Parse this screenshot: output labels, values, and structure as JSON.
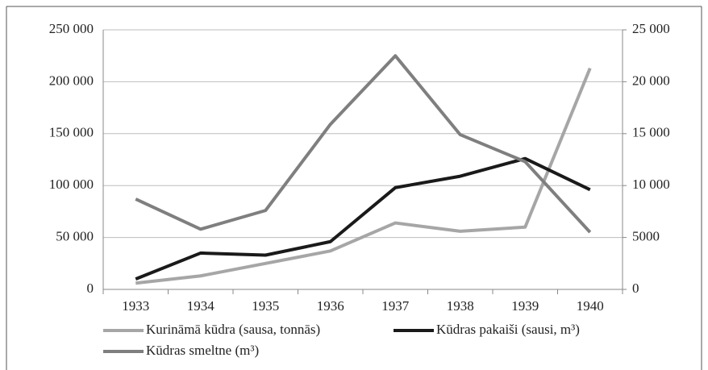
{
  "chart_data": {
    "type": "line",
    "categories": [
      "1933",
      "1934",
      "1935",
      "1936",
      "1937",
      "1938",
      "1939",
      "1940"
    ],
    "series": [
      {
        "name": "Kurināmā kūdra (sausa, tonnās)",
        "color": "#a6a6a6",
        "values": [
          6000,
          13000,
          25000,
          37000,
          64000,
          56000,
          60000,
          213000
        ]
      },
      {
        "name": "Kūdras pakaiši (sausi, m³)",
        "color": "#1a1a1a",
        "axis": "y2",
        "values": [
          1000,
          3500,
          3300,
          4600,
          9800,
          10900,
          12600,
          9600
        ]
      },
      {
        "name": "Kūdras smeltne (m³)",
        "color": "#7f7f7f",
        "values": [
          87000,
          58000,
          76000,
          159000,
          225000,
          149000,
          123000,
          55000
        ]
      }
    ],
    "ylim": [
      0,
      250000
    ],
    "yticks": [
      0,
      {
        "value": 50000,
        "label": "50 000"
      },
      {
        "value": 100000,
        "label": "100 000"
      },
      {
        "value": 150000,
        "label": "150 000"
      },
      {
        "value": 200000,
        "label": "200 000"
      },
      {
        "value": 250000,
        "label": "250 000"
      }
    ],
    "y2lim": [
      0,
      25000
    ],
    "y2ticks": [
      0,
      5000,
      {
        "value": 10000,
        "label": "10 000"
      },
      {
        "value": 15000,
        "label": "15 000"
      },
      {
        "value": 20000,
        "label": "20 000"
      },
      {
        "value": 25000,
        "label": "25 000"
      }
    ],
    "grid": true
  }
}
